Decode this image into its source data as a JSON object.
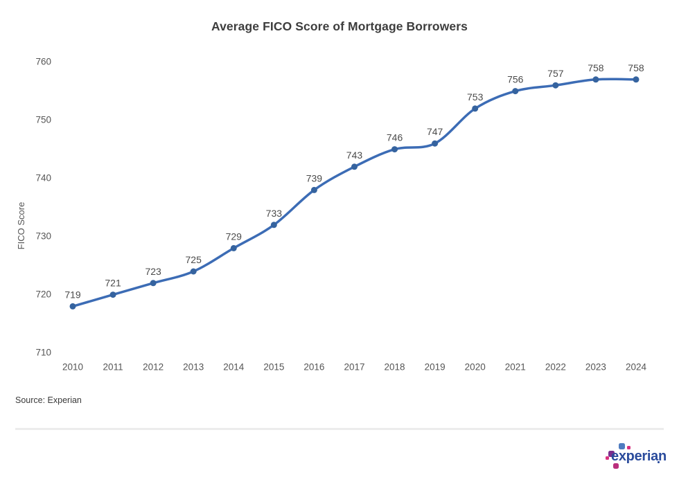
{
  "header": {
    "title": "Average FICO Score of Mortgage Borrowers"
  },
  "chart_data": {
    "type": "line",
    "title": "Average FICO Score of Mortgage Borrowers",
    "categories": [
      "2010",
      "2011",
      "2012",
      "2013",
      "2014",
      "2015",
      "2016",
      "2017",
      "2018",
      "2019",
      "2020",
      "2021",
      "2022",
      "2023",
      "2024"
    ],
    "series": [
      {
        "name": "Average FICO Score",
        "values": [
          719,
          721,
          723,
          725,
          729,
          733,
          739,
          743,
          746,
          747,
          753,
          756,
          757,
          758,
          758
        ]
      }
    ],
    "data_labels": [
      719,
      721,
      723,
      725,
      729,
      733,
      739,
      743,
      746,
      747,
      753,
      756,
      757,
      758,
      758
    ],
    "xlabel": "",
    "ylabel": "FICO Score",
    "ylim": [
      710,
      760
    ],
    "yticks": [
      710,
      720,
      730,
      740,
      750,
      760
    ],
    "grid": false,
    "legend": "none",
    "line_color": "#3c6cb5",
    "marker_color": "#35639f",
    "smooth": true
  },
  "footer": {
    "source": "Source: Experian",
    "logo_text": "experian",
    "logo_colors": {
      "navy": "#2a4b9c",
      "blue": "#4f7cc0",
      "magenta": "#ba2f7d",
      "purple": "#7b2e8d",
      "pink": "#d9327f"
    }
  }
}
